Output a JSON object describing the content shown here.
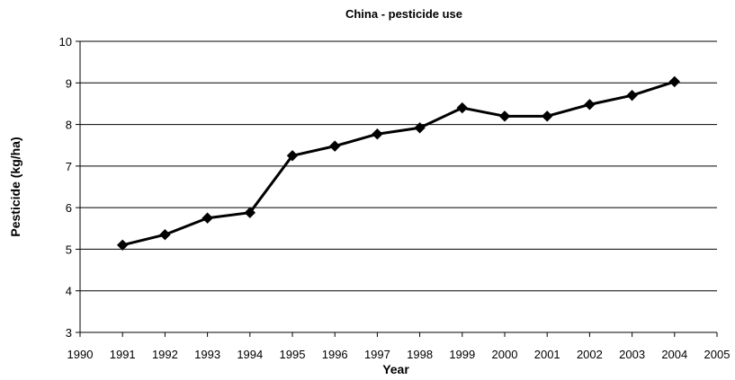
{
  "chart_data": {
    "type": "line",
    "title": "China - pesticide use",
    "xlabel": "Year",
    "ylabel": "Pesticide (kg/ha)",
    "xlim": [
      1990,
      2005
    ],
    "ylim": [
      3,
      10
    ],
    "x_ticks": [
      1990,
      1991,
      1992,
      1993,
      1994,
      1995,
      1996,
      1997,
      1998,
      1999,
      2000,
      2001,
      2002,
      2003,
      2004,
      2005
    ],
    "y_ticks": [
      3,
      4,
      5,
      6,
      7,
      8,
      9,
      10
    ],
    "grid": "horizontal",
    "legend": "none",
    "series": [
      {
        "color": "#000000",
        "marker": "diamond",
        "x": [
          1991,
          1992,
          1993,
          1994,
          1995,
          1996,
          1997,
          1998,
          1999,
          2000,
          2001,
          2002,
          2003,
          2004
        ],
        "y": [
          5.1,
          5.35,
          5.75,
          5.88,
          7.25,
          7.48,
          7.77,
          7.92,
          8.4,
          8.2,
          8.2,
          8.48,
          8.7,
          9.03
        ]
      }
    ]
  }
}
